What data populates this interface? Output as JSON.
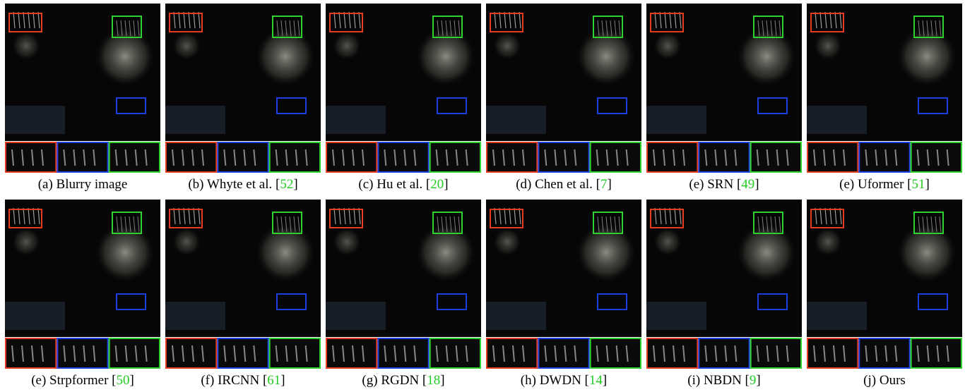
{
  "panels": [
    {
      "caption": "(a) Blurry image"
    },
    {
      "caption": "(b) Whyte et al.  [",
      "ref": "52",
      "ref_close": "]"
    },
    {
      "caption": "(c) Hu et al.  [",
      "ref": "20",
      "ref_close": "]"
    },
    {
      "caption": "(d) Chen et al.  [",
      "ref": "7",
      "ref_close": "]"
    },
    {
      "caption": "(e) SRN [",
      "ref": "49",
      "ref_close": "]"
    },
    {
      "caption": "(e) Uformer [",
      "ref": "51",
      "ref_close": "]"
    },
    {
      "caption": "(e) Strpformer [",
      "ref": "50",
      "ref_close": "]"
    },
    {
      "caption": "(f) IRCNN [",
      "ref": "61",
      "ref_close": "]"
    },
    {
      "caption": "(g) RGDN [",
      "ref": "18",
      "ref_close": "]"
    },
    {
      "caption": "(h) DWDN [",
      "ref": "14",
      "ref_close": "]"
    },
    {
      "caption": "(i) NBDN [",
      "ref": "9",
      "ref_close": "]"
    },
    {
      "caption": "(j) Ours"
    }
  ]
}
